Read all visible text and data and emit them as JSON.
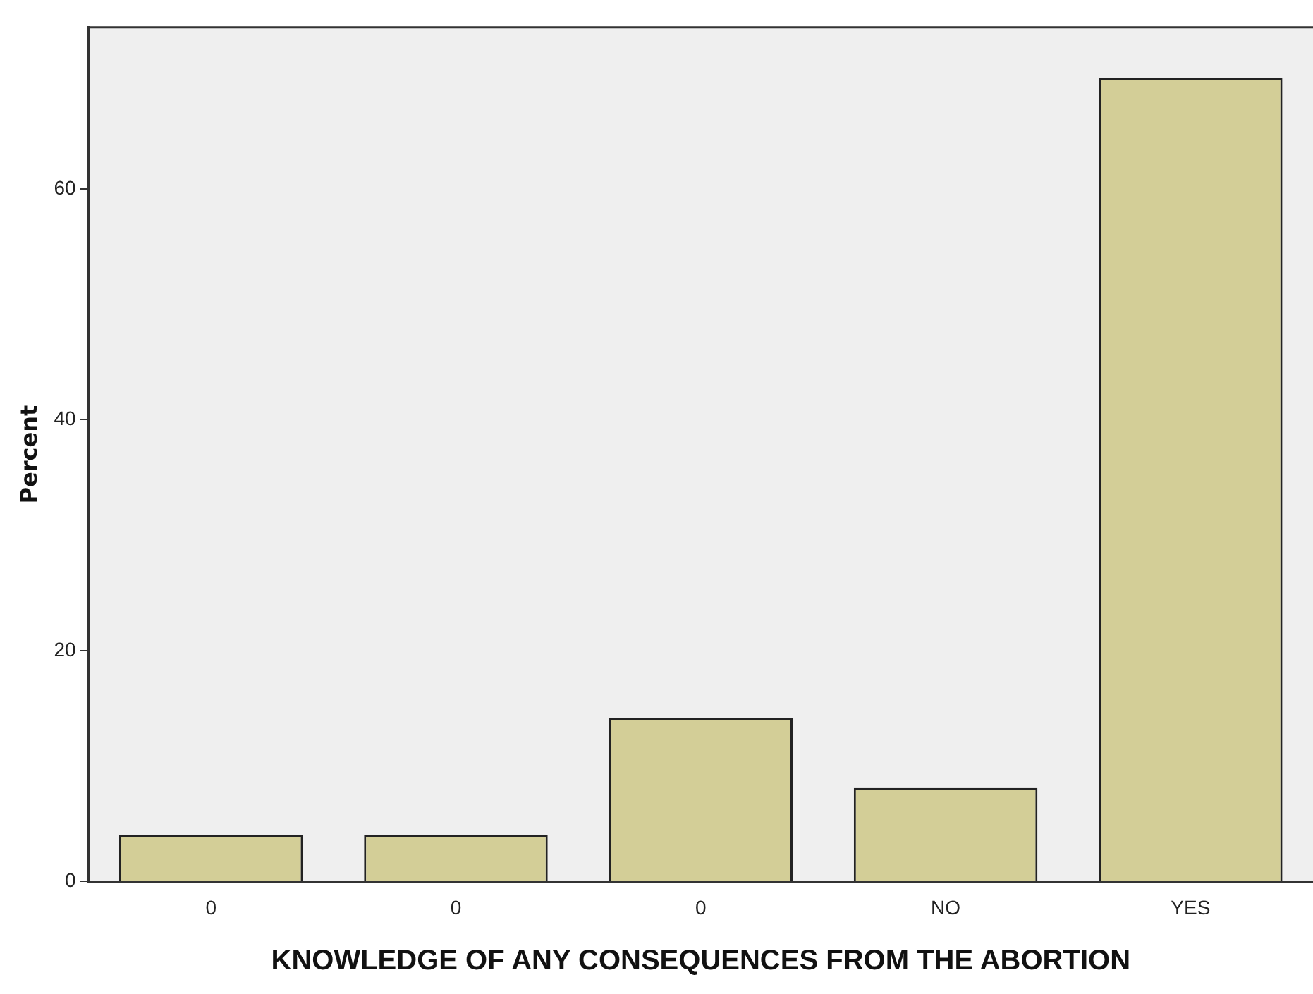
{
  "chart_data": {
    "type": "bar",
    "xlabel": "KNOWLEDGE OF ANY CONSEQUENCES FROM THE ABORTION",
    "ylabel": "Percent",
    "categories": [
      "0",
      "0",
      "0",
      "NO",
      "YES"
    ],
    "values": [
      4.0,
      4.0,
      14.2,
      8.1,
      69.6
    ],
    "color": "#d3ce97",
    "ylim": [
      0,
      74
    ],
    "yticks": [
      0,
      20,
      40,
      60
    ],
    "grid": false,
    "legend": false
  }
}
